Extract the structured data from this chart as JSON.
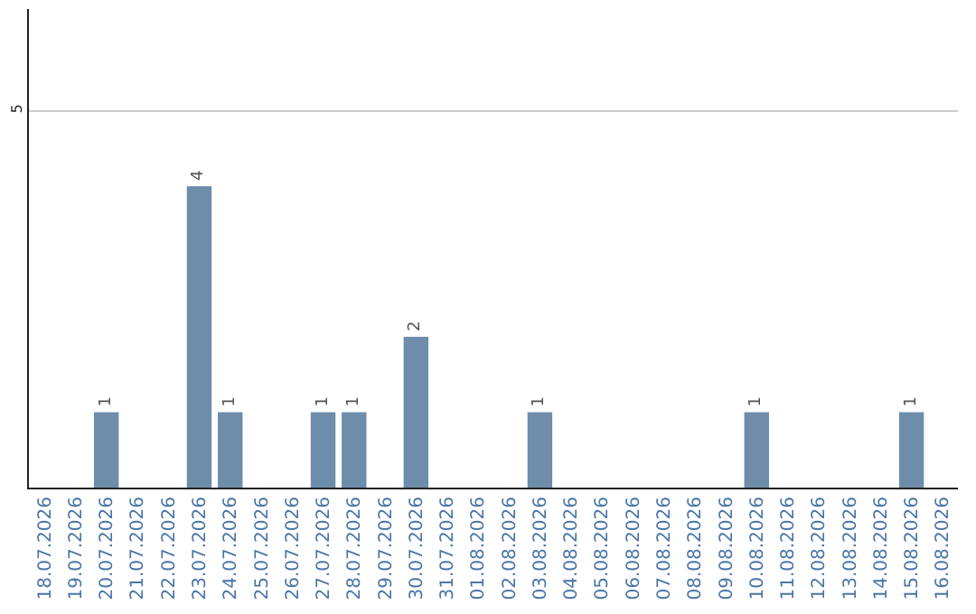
{
  "chart_data": {
    "type": "bar",
    "categories": [
      "18.07.2026",
      "19.07.2026",
      "20.07.2026",
      "21.07.2026",
      "22.07.2026",
      "23.07.2026",
      "24.07.2026",
      "25.07.2026",
      "26.07.2026",
      "27.07.2026",
      "28.07.2026",
      "29.07.2026",
      "30.07.2026",
      "31.07.2026",
      "01.08.2026",
      "02.08.2026",
      "03.08.2026",
      "04.08.2026",
      "05.08.2026",
      "06.08.2026",
      "07.08.2026",
      "08.08.2026",
      "09.08.2026",
      "10.08.2026",
      "11.08.2026",
      "12.08.2026",
      "13.08.2026",
      "14.08.2026",
      "15.08.2026",
      "16.08.2026"
    ],
    "values": [
      0,
      0,
      1,
      0,
      0,
      4,
      1,
      0,
      0,
      1,
      1,
      0,
      2,
      0,
      0,
      0,
      1,
      0,
      0,
      0,
      0,
      0,
      0,
      1,
      0,
      0,
      0,
      0,
      1,
      0
    ],
    "value_labels": [
      null,
      null,
      "1",
      null,
      null,
      "4",
      "1",
      null,
      null,
      "1",
      "1",
      null,
      "2",
      null,
      null,
      null,
      "1",
      null,
      null,
      null,
      null,
      null,
      null,
      "1",
      null,
      null,
      null,
      null,
      "1",
      null
    ],
    "color": "#6d8dab",
    "ylim": [
      0,
      6.35
    ],
    "yticks": [
      5
    ],
    "grid": "y",
    "legend": false
  }
}
